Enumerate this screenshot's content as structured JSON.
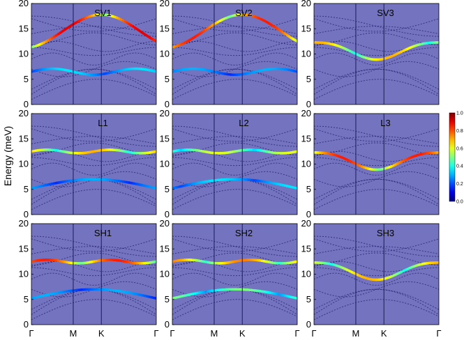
{
  "chart_data": {
    "type": "heatmap",
    "ylabel": "Energy (meV)",
    "ylim": [
      0,
      20
    ],
    "yticks": [
      "0",
      "5",
      "10",
      "15",
      "20"
    ],
    "kpath": [
      "Γ",
      "M",
      "K",
      "Γ"
    ],
    "colorbar": {
      "ticks": [
        "0.0",
        "0.2",
        "0.4",
        "0.6",
        "0.8",
        "1.0"
      ],
      "range": [
        0,
        1
      ],
      "colormap": "jet"
    },
    "background_color": "#7373c0",
    "panels": [
      {
        "label": "SV1",
        "highlight": [
          {
            "branch": "top",
            "weight": 0.9
          },
          {
            "branch": "mid",
            "weight": 0.35
          }
        ]
      },
      {
        "label": "SV2",
        "highlight": [
          {
            "branch": "top",
            "weight": 0.85
          },
          {
            "branch": "mid",
            "weight": 0.3
          }
        ]
      },
      {
        "label": "SV3",
        "highlight": [
          {
            "branch": "cross",
            "weight": 0.7
          }
        ]
      },
      {
        "label": "L1",
        "highlight": [
          {
            "branch": "flat12",
            "weight": 0.7
          },
          {
            "branch": "low",
            "weight": 0.3
          }
        ]
      },
      {
        "label": "L2",
        "highlight": [
          {
            "branch": "flat12",
            "weight": 0.6
          },
          {
            "branch": "low",
            "weight": 0.35
          }
        ]
      },
      {
        "label": "L3",
        "highlight": [
          {
            "branch": "cross",
            "weight": 0.85
          }
        ]
      },
      {
        "label": "SH1",
        "highlight": [
          {
            "branch": "flat12",
            "weight": 0.85
          },
          {
            "branch": "low",
            "weight": 0.3
          }
        ]
      },
      {
        "label": "SH2",
        "highlight": [
          {
            "branch": "flat12",
            "weight": 0.75
          },
          {
            "branch": "low",
            "weight": 0.5
          }
        ]
      },
      {
        "label": "SH3",
        "highlight": [
          {
            "branch": "cross",
            "weight": 0.7
          }
        ]
      }
    ]
  }
}
